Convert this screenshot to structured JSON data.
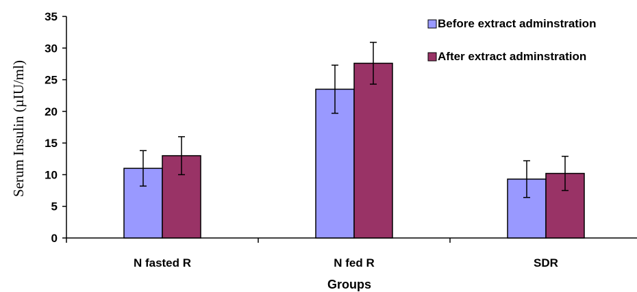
{
  "chart_data": {
    "type": "bar",
    "title": "",
    "xlabel": "Groups",
    "ylabel": "Serum Insulin (µIU/ml)",
    "ylim": [
      0,
      35
    ],
    "yticks": [
      0,
      5,
      10,
      15,
      20,
      25,
      30,
      35
    ],
    "categories": [
      "N fasted R",
      "N fed R",
      "SDR"
    ],
    "series": [
      {
        "name": "Before extract adminstration",
        "color": "#9999ff",
        "values": [
          11,
          23.5,
          9.3
        ],
        "errors": [
          2.8,
          3.8,
          2.9
        ]
      },
      {
        "name": "After extract adminstration",
        "color": "#993366",
        "values": [
          13,
          27.6,
          10.2
        ],
        "errors": [
          3.0,
          3.3,
          2.7
        ]
      }
    ],
    "grid": false,
    "legend": "top-right"
  }
}
